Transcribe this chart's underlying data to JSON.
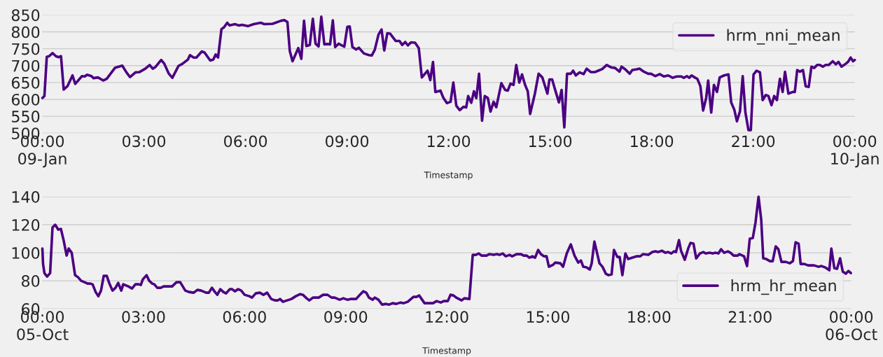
{
  "chart_data": [
    {
      "type": "line",
      "xlabel": "Timestamp",
      "legend": "top right",
      "grid": "y",
      "xlim": [
        0,
        24
      ],
      "ylim": [
        500,
        850
      ],
      "xticks": [
        {
          "value": 0,
          "label": "00:00\n09-Jan"
        },
        {
          "value": 3,
          "label": "03:00"
        },
        {
          "value": 6,
          "label": "06:00"
        },
        {
          "value": 9,
          "label": "09:00"
        },
        {
          "value": 12,
          "label": "12:00"
        },
        {
          "value": 15,
          "label": "15:00"
        },
        {
          "value": 18,
          "label": "18:00"
        },
        {
          "value": 21,
          "label": "21:00"
        },
        {
          "value": 24,
          "label": "00:00\n10-Jan"
        }
      ],
      "yticks": [
        500,
        550,
        600,
        650,
        700,
        750,
        800,
        850
      ],
      "series": [
        {
          "name": "hrm_nni_mean",
          "color": "#4b0082",
          "x": [
            0,
            0.06,
            0.13,
            0.2,
            0.3,
            0.4,
            0.48,
            0.55,
            0.63,
            0.74,
            0.89,
            0.97,
            1.17,
            1.25,
            1.32,
            1.45,
            1.51,
            1.64,
            1.8,
            1.9,
            2.15,
            2.36,
            2.49,
            2.59,
            2.75,
            2.87,
            3.04,
            3.17,
            3.26,
            3.34,
            3.51,
            3.6,
            3.73,
            3.84,
            4.02,
            4.13,
            4.3,
            4.36,
            4.47,
            4.55,
            4.71,
            4.79,
            4.96,
            5.05,
            5.12,
            5.19,
            5.29,
            5.37,
            5.46,
            5.53,
            5.69,
            5.8,
            5.9,
            6.07,
            6.24,
            6.45,
            6.56,
            6.8,
            7.05,
            7.15,
            7.24,
            7.31,
            7.39,
            7.56,
            7.65,
            7.73,
            7.8,
            7.9,
            7.99,
            8.07,
            8.16,
            8.24,
            8.33,
            8.41,
            8.5,
            8.58,
            8.65,
            8.75,
            8.92,
            9.01,
            9.08,
            9.16,
            9.27,
            9.35,
            9.5,
            9.65,
            9.73,
            9.82,
            9.93,
            10.02,
            10.1,
            10.19,
            10.27,
            10.44,
            10.55,
            10.63,
            10.72,
            10.8,
            10.89,
            11.01,
            11.12,
            11.21,
            11.38,
            11.46,
            11.54,
            11.61,
            11.76,
            11.85,
            11.95,
            12.06,
            12.14,
            12.23,
            12.33,
            12.44,
            12.52,
            12.58,
            12.67,
            12.75,
            12.82,
            12.9,
            12.99,
            13.07,
            13.16,
            13.24,
            13.33,
            13.41,
            13.56,
            13.67,
            13.75,
            13.83,
            13.92,
            14.0,
            14.09,
            14.17,
            14.26,
            14.34,
            14.41,
            14.55,
            14.66,
            14.77,
            14.92,
            14.98,
            15.06,
            15.15,
            15.26,
            15.34,
            15.42,
            15.5,
            15.61,
            15.68,
            15.76,
            15.87,
            15.99,
            16.08,
            16.2,
            16.33,
            16.42,
            16.54,
            16.67,
            16.8,
            16.92,
            17.05,
            17.11,
            17.22,
            17.35,
            17.43,
            17.56,
            17.64,
            17.77,
            17.9,
            17.98,
            18.11,
            18.24,
            18.36,
            18.49,
            18.62,
            18.74,
            18.87,
            18.95,
            19.04,
            19.11,
            19.18,
            19.29,
            19.35,
            19.44,
            19.52,
            19.61,
            19.67,
            19.76,
            19.84,
            19.93,
            20.01,
            20.14,
            20.27,
            20.35,
            20.44,
            20.52,
            20.61,
            20.69,
            20.77,
            20.86,
            20.93,
            21.01,
            21.1,
            21.2,
            21.28,
            21.37,
            21.45,
            21.54,
            21.62,
            21.7,
            21.79,
            21.87,
            21.94,
            22.04,
            22.17,
            22.23,
            22.3,
            22.38,
            22.47,
            22.55,
            22.64,
            22.72,
            22.8,
            22.89,
            22.97,
            23.06,
            23.14,
            23.23,
            23.35,
            23.44,
            23.52,
            23.61,
            23.74,
            23.8,
            23.88,
            23.95,
            24.0
          ],
          "values": [
            604,
            610,
            726,
            728,
            737,
            728,
            725,
            728,
            629,
            639,
            671,
            646,
            669,
            668,
            673,
            669,
            663,
            665,
            656,
            661,
            694,
            700,
            679,
            666,
            680,
            681,
            691,
            702,
            691,
            696,
            717,
            706,
            677,
            664,
            699,
            705,
            718,
            731,
            724,
            724,
            742,
            739,
            715,
            718,
            733,
            724,
            808,
            814,
            827,
            819,
            823,
            819,
            821,
            817,
            823,
            827,
            823,
            824,
            833,
            835,
            829,
            743,
            713,
            752,
            720,
            833,
            758,
            761,
            839,
            765,
            757,
            845,
            763,
            764,
            763,
            834,
            755,
            765,
            756,
            815,
            816,
            755,
            748,
            753,
            736,
            731,
            730,
            747,
            792,
            807,
            745,
            796,
            795,
            773,
            773,
            761,
            770,
            760,
            769,
            768,
            752,
            665,
            685,
            657,
            711,
            622,
            626,
            604,
            589,
            593,
            650,
            581,
            568,
            578,
            576,
            610,
            590,
            624,
            604,
            676,
            537,
            610,
            604,
            564,
            593,
            577,
            648,
            628,
            626,
            647,
            643,
            702,
            650,
            674,
            643,
            624,
            557,
            617,
            676,
            665,
            617,
            659,
            659,
            628,
            591,
            628,
            517,
            676,
            676,
            685,
            671,
            680,
            675,
            691,
            681,
            681,
            685,
            690,
            702,
            695,
            693,
            682,
            697,
            689,
            676,
            687,
            689,
            691,
            682,
            676,
            676,
            669,
            675,
            668,
            671,
            664,
            668,
            668,
            664,
            669,
            664,
            671,
            664,
            661,
            639,
            567,
            604,
            656,
            561,
            643,
            622,
            665,
            671,
            674,
            591,
            570,
            535,
            565,
            669,
            561,
            509,
            509,
            674,
            685,
            680,
            598,
            613,
            610,
            583,
            610,
            598,
            661,
            622,
            682,
            617,
            622,
            622,
            687,
            682,
            687,
            639,
            637,
            697,
            693,
            702,
            702,
            697,
            702,
            702,
            713,
            704,
            711,
            697,
            706,
            711,
            724,
            713,
            717
          ]
        }
      ]
    },
    {
      "type": "line",
      "xlabel": "Timestamp",
      "legend": "bottom right",
      "grid": "y",
      "xlim": [
        0,
        24
      ],
      "ylim": [
        60,
        140
      ],
      "xticks": [
        {
          "value": 0,
          "label": "00:00\n05-Oct"
        },
        {
          "value": 3,
          "label": "03:00"
        },
        {
          "value": 6,
          "label": "06:00"
        },
        {
          "value": 9,
          "label": "09:00"
        },
        {
          "value": 12,
          "label": "12:00"
        },
        {
          "value": 15,
          "label": "15:00"
        },
        {
          "value": 18,
          "label": "18:00"
        },
        {
          "value": 21,
          "label": "21:00"
        },
        {
          "value": 24,
          "label": "00:00\n06-Oct"
        }
      ],
      "yticks": [
        60,
        80,
        100,
        120,
        140
      ],
      "series": [
        {
          "name": "hrm_hr_mean",
          "color": "#4b0082",
          "x": [
            0,
            0.02,
            0.06,
            0.14,
            0.23,
            0.3,
            0.38,
            0.47,
            0.55,
            0.63,
            0.72,
            0.78,
            0.87,
            0.97,
            1.06,
            1.15,
            1.25,
            1.34,
            1.42,
            1.49,
            1.58,
            1.66,
            1.74,
            1.82,
            1.91,
            1.99,
            2.08,
            2.17,
            2.25,
            2.34,
            2.4,
            2.55,
            2.66,
            2.76,
            2.86,
            2.92,
            2.98,
            3.09,
            3.17,
            3.26,
            3.32,
            3.41,
            3.51,
            3.6,
            3.73,
            3.85,
            3.98,
            4.09,
            4.24,
            4.35,
            4.49,
            4.6,
            4.71,
            4.86,
            4.94,
            5.03,
            5.12,
            5.19,
            5.28,
            5.37,
            5.45,
            5.56,
            5.63,
            5.71,
            5.81,
            5.9,
            6.0,
            6.14,
            6.22,
            6.33,
            6.45,
            6.56,
            6.67,
            6.79,
            6.9,
            6.99,
            7.05,
            7.14,
            7.26,
            7.39,
            7.52,
            7.65,
            7.73,
            7.84,
            7.92,
            8.03,
            8.2,
            8.33,
            8.46,
            8.58,
            8.67,
            8.82,
            8.93,
            9.05,
            9.14,
            9.31,
            9.44,
            9.52,
            9.61,
            9.69,
            9.8,
            9.86,
            9.97,
            10.08,
            10.2,
            10.29,
            10.39,
            10.5,
            10.63,
            10.72,
            10.84,
            11.01,
            11.1,
            11.18,
            11.34,
            11.48,
            11.59,
            11.7,
            11.82,
            11.91,
            12.03,
            12.11,
            12.2,
            12.28,
            12.44,
            12.52,
            12.67,
            12.77,
            12.86,
            12.95,
            13.03,
            13.18,
            13.26,
            13.39,
            13.49,
            13.56,
            13.66,
            13.75,
            13.86,
            13.94,
            14.07,
            14.2,
            14.28,
            14.37,
            14.45,
            14.54,
            14.62,
            14.71,
            14.79,
            14.88,
            14.96,
            15.03,
            15.16,
            15.22,
            15.37,
            15.45,
            15.56,
            15.68,
            15.79,
            15.9,
            15.98,
            16.05,
            16.15,
            16.24,
            16.3,
            16.38,
            16.53,
            16.62,
            16.72,
            16.8,
            16.89,
            16.96,
            17.06,
            17.13,
            17.21,
            17.3,
            17.38,
            17.51,
            17.64,
            17.74,
            17.82,
            17.98,
            18.1,
            18.19,
            18.27,
            18.38,
            18.49,
            18.57,
            18.66,
            18.74,
            18.8,
            18.89,
            18.95,
            19.06,
            19.17,
            19.23,
            19.32,
            19.4,
            19.51,
            19.61,
            19.69,
            19.8,
            19.89,
            19.97,
            20.06,
            20.14,
            20.23,
            20.34,
            20.42,
            20.51,
            20.63,
            20.68,
            20.82,
            20.91,
            20.99,
            21.08,
            21.16,
            21.25,
            21.33,
            21.39,
            21.48,
            21.59,
            21.67,
            21.76,
            21.84,
            21.93,
            22.06,
            22.18,
            22.27,
            22.35,
            22.44,
            22.5,
            22.61,
            22.72,
            22.9,
            23.03,
            23.12,
            23.23,
            23.35,
            23.41,
            23.5,
            23.58,
            23.67,
            23.75,
            23.84,
            23.92,
            23.99
          ],
          "values": [
            103,
            92,
            85.5,
            83,
            85.5,
            118,
            120,
            116.5,
            117,
            109,
            98,
            103,
            100,
            84,
            82.5,
            80,
            79,
            78,
            78,
            77.5,
            72,
            69,
            73,
            83.5,
            83.5,
            78,
            73,
            75,
            78.5,
            73,
            77.5,
            76,
            74.5,
            77.5,
            77.5,
            77,
            81,
            84,
            80,
            78,
            77.5,
            75,
            75,
            76,
            76,
            76,
            79,
            79,
            73,
            72,
            71.5,
            73.5,
            73,
            71.5,
            71.5,
            75,
            72,
            70,
            74,
            72,
            71,
            74,
            74,
            72.5,
            74,
            73,
            70,
            69,
            68,
            71,
            71.5,
            70,
            71.5,
            67,
            66,
            66,
            67,
            65,
            66,
            67,
            69,
            70.5,
            70,
            67.5,
            66,
            68,
            68,
            70,
            70,
            68,
            68,
            66.5,
            67.5,
            66.5,
            67,
            67,
            70.5,
            72.5,
            71.5,
            68,
            66.5,
            68,
            66.5,
            63,
            63.5,
            63,
            64,
            63.5,
            64.5,
            64,
            65,
            68.5,
            68.5,
            69.5,
            64,
            64,
            64,
            65.5,
            64.5,
            65.5,
            65.5,
            70,
            69.5,
            68,
            66,
            67.5,
            67,
            98.5,
            98.5,
            99.5,
            98,
            98,
            99,
            98.5,
            99,
            98.5,
            99.5,
            97.5,
            98.5,
            97.5,
            99,
            99,
            98,
            98,
            96.5,
            97.5,
            96.5,
            102,
            99,
            97.5,
            97.5,
            90,
            91.5,
            93,
            92.5,
            90,
            99.5,
            106,
            98,
            93,
            94.5,
            90,
            89.5,
            88,
            92.5,
            108,
            92.5,
            90,
            85,
            84,
            84.5,
            102,
            97,
            97,
            84,
            99.5,
            95.5,
            96.5,
            97.5,
            97.5,
            99,
            98.5,
            100.5,
            101,
            100.5,
            101.5,
            100,
            100.5,
            99.5,
            101,
            100.5,
            109,
            101.5,
            95,
            103.5,
            107,
            106.5,
            96,
            99.5,
            100.5,
            99.5,
            100,
            99.5,
            100,
            99.5,
            102.5,
            100,
            101,
            100,
            98,
            98,
            99,
            97.5,
            90.5,
            110,
            110.5,
            121.5,
            140,
            123.5,
            96,
            95.5,
            94,
            94,
            104.5,
            102.5,
            93.5,
            93.5,
            92.5,
            94,
            107.5,
            106.5,
            92,
            92,
            91,
            91,
            90,
            90.5,
            89.5,
            87.5,
            103,
            89,
            88.5,
            96,
            86.5,
            85,
            87,
            85.5
          ]
        }
      ]
    }
  ]
}
